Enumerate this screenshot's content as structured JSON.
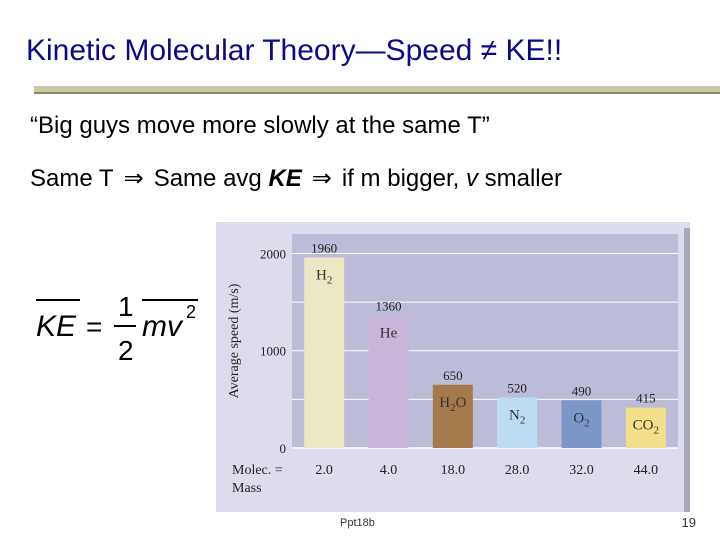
{
  "slide": {
    "title": "Kinetic Molecular Theory—Speed ≠ KE!!",
    "quote": "“Big guys move more slowly at the same T”",
    "line2": {
      "part1": "Same T",
      "arrow": "⇒",
      "part2": "Same avg",
      "ke": "KE",
      "part3": "if m bigger,",
      "v": "v",
      "part4": "smaller"
    },
    "formula": {
      "lhs": "KE",
      "eq": "=",
      "num": "1",
      "den": "2",
      "rhs": "mv",
      "exp": "2"
    },
    "footer": "Ppt18b",
    "page_number": "19"
  },
  "chart_data": {
    "type": "bar",
    "ylabel": "Average speed (m/s)",
    "ylim": [
      0,
      2200
    ],
    "yticks": [
      0,
      1000,
      2000
    ],
    "xlabel": "Molec. = Mass",
    "xlabel_line1": "Molec. =",
    "xlabel_line2": "Mass",
    "categories": [
      {
        "formula": "H",
        "sub": "2",
        "post": ""
      },
      {
        "formula": "He",
        "sub": "",
        "post": ""
      },
      {
        "formula": "H",
        "sub": "2",
        "post": "O"
      },
      {
        "formula": "N",
        "sub": "2",
        "post": ""
      },
      {
        "formula": "O",
        "sub": "2",
        "post": ""
      },
      {
        "formula": "CO",
        "sub": "2",
        "post": ""
      }
    ],
    "values": [
      1960,
      1360,
      650,
      520,
      490,
      415
    ],
    "value_labels": [
      "1960",
      "1360",
      "650",
      "520",
      "490",
      "415"
    ],
    "masses": [
      "2.0",
      "4.0",
      "18.0",
      "28.0",
      "32.0",
      "44.0"
    ],
    "colors": [
      "#ece8c4",
      "#c8b6d8",
      "#a57a4a",
      "#bcdcf2",
      "#7c96c8",
      "#f4e08a"
    ],
    "label_colors": [
      "#333333",
      "#333333",
      "#333333",
      "#333333",
      "#333333",
      "#333333"
    ],
    "panel_color": "#dcdcec",
    "plot_color": "#bcbcd8"
  }
}
